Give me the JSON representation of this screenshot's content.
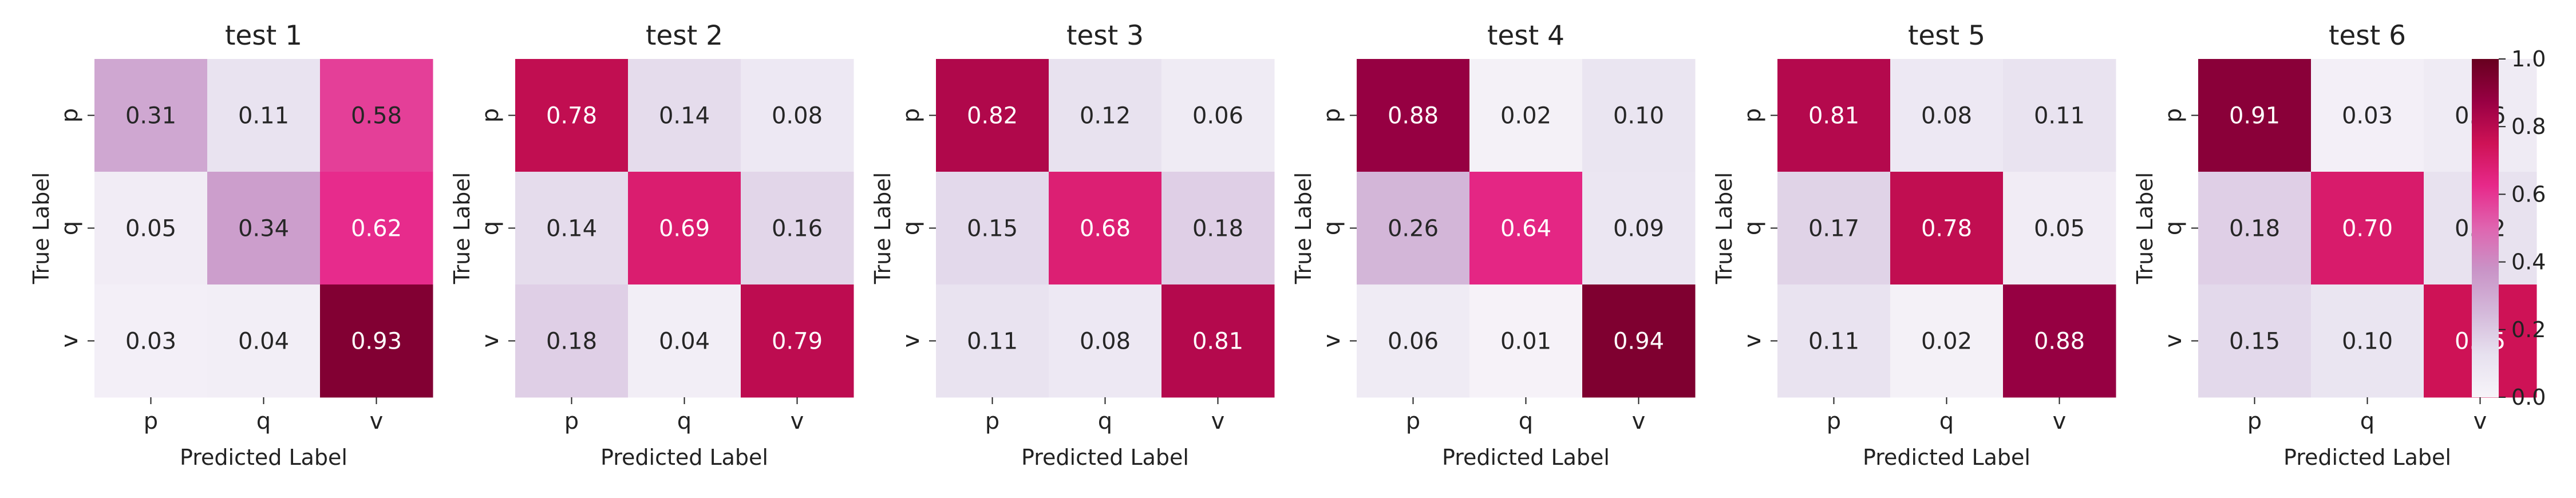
{
  "chart_data": {
    "type": "heatmap",
    "colormap": "PuRd",
    "colorbar": {
      "range": [
        0.0,
        1.0
      ],
      "ticks": [
        "0.0",
        "0.2",
        "0.4",
        "0.6",
        "0.8",
        "1.0"
      ]
    },
    "xlabel": "Predicted Label",
    "ylabel": "True Label",
    "x_categories": [
      "p",
      "q",
      "v"
    ],
    "y_categories": [
      "p",
      "q",
      "v"
    ],
    "panels": [
      {
        "title": "test 1",
        "values": [
          [
            0.31,
            0.11,
            0.58
          ],
          [
            0.05,
            0.34,
            0.62
          ],
          [
            0.03,
            0.04,
            0.93
          ]
        ],
        "labels": [
          [
            "0.31",
            "0.11",
            "0.58"
          ],
          [
            "0.05",
            "0.34",
            "0.62"
          ],
          [
            "0.03",
            "0.04",
            "0.93"
          ]
        ]
      },
      {
        "title": "test 2",
        "values": [
          [
            0.78,
            0.14,
            0.08
          ],
          [
            0.14,
            0.69,
            0.16
          ],
          [
            0.18,
            0.04,
            0.79
          ]
        ],
        "labels": [
          [
            "0.78",
            "0.14",
            "0.08"
          ],
          [
            "0.14",
            "0.69",
            "0.16"
          ],
          [
            "0.18",
            "0.04",
            "0.79"
          ]
        ]
      },
      {
        "title": "test 3",
        "values": [
          [
            0.82,
            0.12,
            0.06
          ],
          [
            0.15,
            0.68,
            0.18
          ],
          [
            0.11,
            0.08,
            0.81
          ]
        ],
        "labels": [
          [
            "0.82",
            "0.12",
            "0.06"
          ],
          [
            "0.15",
            "0.68",
            "0.18"
          ],
          [
            "0.11",
            "0.08",
            "0.81"
          ]
        ]
      },
      {
        "title": "test 4",
        "values": [
          [
            0.88,
            0.02,
            0.1
          ],
          [
            0.26,
            0.64,
            0.09
          ],
          [
            0.06,
            0.01,
            0.94
          ]
        ],
        "labels": [
          [
            "0.88",
            "0.02",
            "0.10"
          ],
          [
            "0.26",
            "0.64",
            "0.09"
          ],
          [
            "0.06",
            "0.01",
            "0.94"
          ]
        ]
      },
      {
        "title": "test 5",
        "values": [
          [
            0.81,
            0.08,
            0.11
          ],
          [
            0.17,
            0.78,
            0.05
          ],
          [
            0.11,
            0.02,
            0.88
          ]
        ],
        "labels": [
          [
            "0.81",
            "0.08",
            "0.11"
          ],
          [
            "0.17",
            "0.78",
            "0.05"
          ],
          [
            "0.11",
            "0.02",
            "0.88"
          ]
        ]
      },
      {
        "title": "test 6",
        "values": [
          [
            0.91,
            0.03,
            0.06
          ],
          [
            0.18,
            0.7,
            0.12
          ],
          [
            0.15,
            0.1,
            0.75
          ]
        ],
        "labels": [
          [
            "0.91",
            "0.03",
            "0.06"
          ],
          [
            "0.18",
            "0.70",
            "0.12"
          ],
          [
            "0.15",
            "0.10",
            "0.75"
          ]
        ]
      }
    ]
  }
}
